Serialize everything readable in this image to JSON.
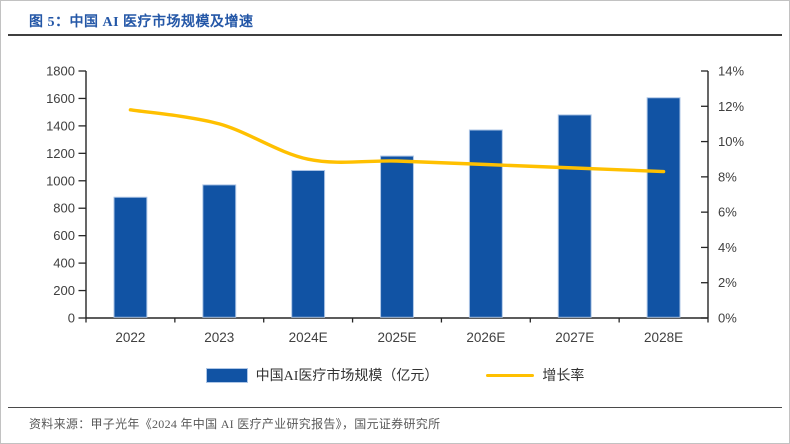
{
  "figure": {
    "title": "图 5：中国 AI 医疗市场规模及增速",
    "source": "资料来源：甲子光年《2024 年中国 AI 医疗产业研究报告》，国元证券研究所"
  },
  "legend": [
    {
      "label": "中国AI医疗市场规模（亿元）",
      "marker": "bar-swatch"
    },
    {
      "label": "增长率",
      "marker": "line-swatch"
    }
  ],
  "colors": {
    "bar": "#1153a4",
    "bar_border": "#aec6e6",
    "line": "#ffc000",
    "title_text": "#2457a7",
    "axis_line": "#262626",
    "axis_text": "#404040",
    "divider": "#3f3f3f",
    "frame_border": "#c2c2c2",
    "source_text": "#595959"
  },
  "chart_data": {
    "type": "bar",
    "subtype": "bar+line combo, dual axis",
    "title": "中国 AI 医疗市场规模及增速",
    "categories": [
      "2022",
      "2023",
      "2024E",
      "2025E",
      "2026E",
      "2027E",
      "2028E"
    ],
    "series": [
      {
        "name": "中国AI医疗市场规模（亿元）",
        "type": "bar",
        "axis": "left",
        "values": [
          880,
          970,
          1075,
          1180,
          1370,
          1480,
          1605
        ]
      },
      {
        "name": "增长率",
        "type": "line",
        "axis": "right",
        "smoothed": true,
        "values": [
          11.8,
          11.0,
          9.0,
          8.9,
          8.7,
          8.5,
          8.3
        ]
      }
    ],
    "left_axis": {
      "min": 0,
      "max": 1800,
      "step": 200,
      "suffix": ""
    },
    "right_axis": {
      "min": 0,
      "max": 14,
      "step": 2,
      "suffix": "%"
    },
    "grid": false,
    "legend_position": "bottom",
    "xlabel": "",
    "ylabel": ""
  }
}
